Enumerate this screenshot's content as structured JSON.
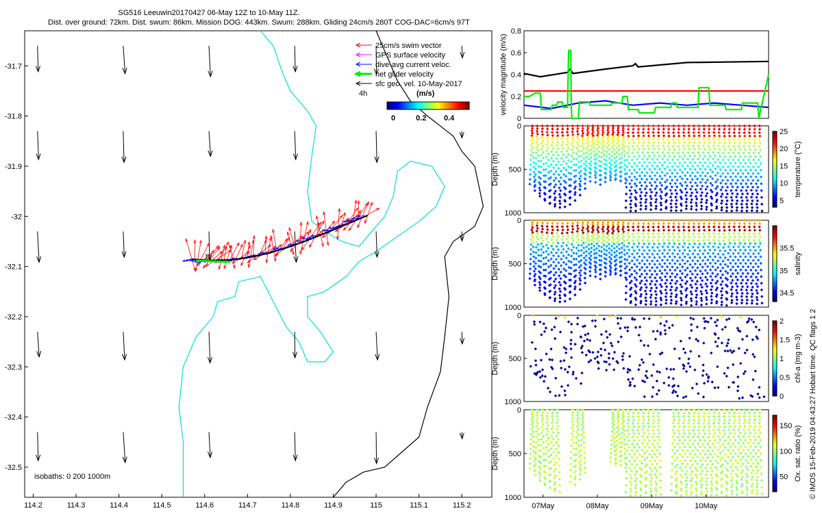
{
  "header": {
    "line1": "SG516 Leeuwin20170427 06-May 12Z to 10-May 11Z.",
    "line2": "Dist. over ground: 72km. Dist. swum: 86km. Mission DOG: 443km. Swum: 288km. Gliding 24cm/s 280T COG-DAC=6cm/s 97T"
  },
  "colors": {
    "swim": "#ff0000",
    "gps": "#ff00ff",
    "dac": "#0000ff",
    "net": "#00ee00",
    "sfc": "#000000",
    "iso200": "#00dddd",
    "iso1000": "#000000",
    "coast": "#000000"
  },
  "chart_data": [
    {
      "type": "map",
      "title": "SG516 Leeuwin20170427 glider track with current vectors",
      "xlim": [
        114.18,
        115.27
      ],
      "ylim": [
        -32.56,
        -31.63
      ],
      "xticks": [
        114.2,
        114.3,
        114.4,
        114.5,
        114.6,
        114.7,
        114.8,
        114.9,
        115,
        115.1,
        115.2
      ],
      "xtick_labels": [
        "114.2",
        "114.3",
        "114.4",
        "114.5",
        "114.6",
        "114.7",
        "114.8",
        "114.9",
        "115",
        "115.1",
        "115.2"
      ],
      "yticks": [
        -31.7,
        -31.8,
        -31.9,
        -32,
        -32.1,
        -32.2,
        -32.3,
        -32.4,
        -32.5
      ],
      "ytick_labels": [
        "-31.7",
        "-31.8",
        "-31.9",
        "-32",
        "-32.1",
        "-32.2",
        "-32.3",
        "-32.4",
        "-32.5"
      ],
      "legend": [
        {
          "label": "25cm/s swim vector",
          "color": "#ff0000",
          "width": 1
        },
        {
          "label": "GPS surface velocity",
          "color": "#ff00ff",
          "width": 1
        },
        {
          "label": "dive-avg current veloc.",
          "color": "#0000ff",
          "width": 1
        },
        {
          "label": "net glider velocity",
          "color": "#00ee00",
          "width": 3
        },
        {
          "label": "sfc geo. vel. 10-May-2017",
          "color": "#000000",
          "width": 1
        }
      ],
      "legend_position": "top-right",
      "time_label": "4h",
      "colorbar": {
        "title": "(m/s)",
        "tick_labels": [
          "0",
          "0.2",
          "0.4"
        ],
        "ticks": [
          0,
          0.2,
          0.4
        ],
        "range": [
          0,
          0.5
        ]
      },
      "isobath_label": "isobaths: 0   200  1000m",
      "track_label": "11",
      "sfc_vectors_lon": [
        114.21,
        114.41,
        114.61,
        114.81,
        115.0,
        115.2
      ],
      "sfc_vectors_lat": [
        -31.66,
        -31.83,
        -32.03,
        -32.23,
        -32.43
      ],
      "isobath_200": [
        [
          114.55,
          -32.56
        ],
        [
          114.55,
          -32.45
        ],
        [
          114.54,
          -32.38
        ],
        [
          114.55,
          -32.3
        ],
        [
          114.58,
          -32.24
        ],
        [
          114.62,
          -32.2
        ],
        [
          114.63,
          -32.17
        ],
        [
          114.67,
          -32.16
        ],
        [
          114.68,
          -32.13
        ],
        [
          114.73,
          -32.12
        ],
        [
          114.76,
          -32.17
        ],
        [
          114.79,
          -32.22
        ],
        [
          114.82,
          -32.25
        ],
        [
          114.84,
          -32.29
        ],
        [
          114.88,
          -32.29
        ],
        [
          114.9,
          -32.27
        ],
        [
          114.87,
          -32.23
        ],
        [
          114.84,
          -32.2
        ],
        [
          114.84,
          -32.16
        ],
        [
          114.88,
          -32.15
        ],
        [
          114.93,
          -32.12
        ],
        [
          114.96,
          -32.09
        ],
        [
          115.0,
          -32.07
        ],
        [
          115.05,
          -32.04
        ],
        [
          115.1,
          -32.01
        ],
        [
          115.14,
          -31.98
        ],
        [
          115.16,
          -31.94
        ],
        [
          115.13,
          -31.9
        ],
        [
          115.08,
          -31.89
        ],
        [
          115.05,
          -31.91
        ],
        [
          115.04,
          -31.96
        ],
        [
          115.02,
          -32.0
        ],
        [
          114.99,
          -32.03
        ],
        [
          114.96,
          -32.06
        ],
        [
          114.92,
          -32.05
        ],
        [
          114.88,
          -32.03
        ],
        [
          114.85,
          -32.01
        ],
        [
          114.84,
          -31.95
        ],
        [
          114.85,
          -31.88
        ],
        [
          114.86,
          -31.82
        ],
        [
          114.84,
          -31.79
        ],
        [
          114.8,
          -31.75
        ],
        [
          114.78,
          -31.71
        ],
        [
          114.76,
          -31.66
        ],
        [
          114.73,
          -31.63
        ]
      ],
      "isobath_1000": [
        [
          114.9,
          -32.56
        ],
        [
          114.93,
          -32.53
        ],
        [
          114.97,
          -32.51
        ],
        [
          115.02,
          -32.5
        ],
        [
          115.06,
          -32.47
        ],
        [
          115.1,
          -32.44
        ],
        [
          115.12,
          -32.38
        ],
        [
          115.15,
          -32.31
        ],
        [
          115.16,
          -32.24
        ],
        [
          115.17,
          -32.16
        ],
        [
          115.16,
          -32.08
        ],
        [
          115.18,
          -32.05
        ],
        [
          115.23,
          -32.02
        ],
        [
          115.25,
          -31.98
        ],
        [
          115.24,
          -31.94
        ],
        [
          115.23,
          -31.9
        ],
        [
          115.2,
          -31.87
        ],
        [
          115.18,
          -31.84
        ],
        [
          115.15,
          -31.82
        ],
        [
          115.12,
          -31.8
        ],
        [
          115.08,
          -31.77
        ],
        [
          115.05,
          -31.73
        ],
        [
          115.03,
          -31.69
        ],
        [
          115.01,
          -31.65
        ],
        [
          115.0,
          -31.63
        ]
      ]
    },
    {
      "type": "line",
      "ylabel": "velocity magnitude (m/s)",
      "ylim": [
        0,
        0.8
      ],
      "yticks": [
        0,
        0.2,
        0.4,
        0.6,
        0.8
      ],
      "ytick_labels": [
        "0",
        "0.2",
        "0.4",
        "0.6",
        "0.8"
      ],
      "xlim": [
        0,
        4.5
      ],
      "series": [
        {
          "name": "net glider speed",
          "color": "#000000",
          "x": [
            0,
            0.3,
            0.8,
            0.85,
            0.9,
            1.5,
            2.0,
            2.05,
            2.1,
            3.0,
            4.5
          ],
          "values": [
            0.41,
            0.38,
            0.42,
            0.45,
            0.41,
            0.45,
            0.48,
            0.5,
            0.47,
            0.51,
            0.52
          ]
        },
        {
          "name": "swim speed",
          "color": "#ff0000",
          "x": [
            0,
            4.5
          ],
          "values": [
            0.25,
            0.25
          ]
        },
        {
          "name": "dive-avg current",
          "color": "#0000ff",
          "x": [
            0,
            0.5,
            1.0,
            1.5,
            2.0,
            2.5,
            3.0,
            3.5,
            4.0,
            4.5
          ],
          "values": [
            0.12,
            0.09,
            0.14,
            0.16,
            0.12,
            0.14,
            0.12,
            0.14,
            0.12,
            0.1
          ]
        },
        {
          "name": "GPS surface velocity",
          "color": "#00ee00",
          "x": [
            0,
            0.1,
            0.2,
            0.3,
            0.32,
            0.5,
            0.52,
            0.6,
            0.62,
            0.7,
            0.72,
            0.8,
            0.82,
            0.86,
            0.87,
            0.88,
            1.0,
            1.02,
            1.2,
            1.22,
            1.6,
            1.62,
            1.8,
            1.82,
            1.9,
            1.92,
            2.1,
            2.12,
            2.4,
            2.42,
            2.7,
            2.72,
            2.8,
            2.82,
            3.2,
            3.22,
            3.4,
            3.42,
            3.7,
            3.72,
            4.0,
            4.02,
            4.3,
            4.32,
            4.5
          ],
          "values": [
            0.2,
            0.2,
            0.23,
            0.23,
            0.08,
            0.08,
            0.12,
            0.12,
            0.15,
            0.15,
            0.1,
            0.1,
            0.62,
            0.62,
            0.1,
            0.0,
            0.0,
            0.15,
            0.15,
            0.12,
            0.12,
            0.14,
            0.14,
            0.2,
            0.2,
            0.08,
            0.08,
            0.05,
            0.05,
            0.1,
            0.1,
            0.14,
            0.14,
            0.1,
            0.1,
            0.28,
            0.28,
            0.12,
            0.12,
            0.08,
            0.08,
            0.14,
            0.14,
            0.0,
            0.4
          ]
        }
      ]
    },
    {
      "type": "scatter",
      "ylabel": "Depth (m)",
      "clabel": "temperature (°C)",
      "ylim": [
        1000,
        0
      ],
      "yticks": [
        0,
        500,
        1000
      ],
      "ytick_labels": [
        "0",
        "500",
        "1000"
      ],
      "clim": [
        3,
        25
      ],
      "cticks": [
        5,
        10,
        15,
        20,
        25
      ],
      "ctick_labels": [
        "5",
        "10",
        "15",
        "20",
        "25"
      ]
    },
    {
      "type": "scatter",
      "ylabel": "Depth (m)",
      "clabel": "salinity",
      "ylim": [
        1000,
        0
      ],
      "yticks": [
        0,
        500,
        1000
      ],
      "ytick_labels": [
        "0",
        "500",
        "1000"
      ],
      "clim": [
        34.3,
        36.0
      ],
      "cticks": [
        34.5,
        35,
        35.5
      ],
      "ctick_labels": [
        "34.5",
        "35",
        "35.5"
      ]
    },
    {
      "type": "scatter",
      "ylabel": "Depth (m)",
      "clabel": "chl-a (mg m-3)",
      "ylim": [
        1000,
        0
      ],
      "yticks": [
        0,
        500,
        1000
      ],
      "ytick_labels": [
        "0",
        "500",
        "1000"
      ],
      "clim": [
        0,
        2
      ],
      "cticks": [
        0,
        0.5,
        1,
        1.5,
        2
      ],
      "ctick_labels": [
        "0",
        "0.5",
        "1",
        "1.5",
        "2"
      ]
    },
    {
      "type": "scatter",
      "ylabel": "Depth (m)",
      "clabel": "Ox. sat. ratio (%)",
      "ylim": [
        1000,
        0
      ],
      "yticks": [
        0,
        500,
        1000
      ],
      "ytick_labels": [
        "0",
        "500",
        "1000"
      ],
      "clim": [
        20,
        170
      ],
      "cticks": [
        50,
        100,
        150
      ],
      "ctick_labels": [
        "50",
        "100",
        "150"
      ],
      "xticks": [
        0.35,
        1.35,
        2.35,
        3.35
      ],
      "xtick_labels": [
        "07May",
        "08May",
        "09May",
        "10May"
      ]
    }
  ],
  "side_text": "© IMOS 15-Feb-2019 04:43:27 Hobart time. QC flags 1  2"
}
